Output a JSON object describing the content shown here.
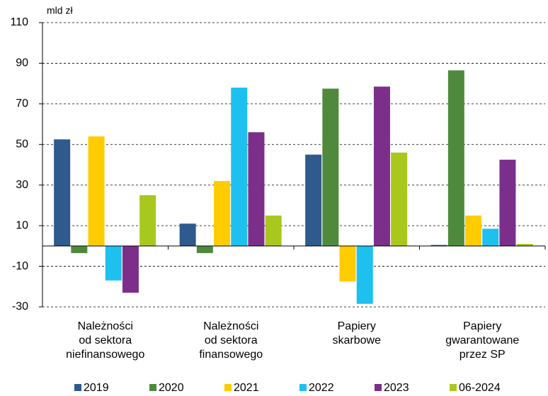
{
  "chart_data": {
    "type": "bar",
    "y_unit": "mld zł",
    "categories": [
      [
        "Należności",
        "od sektora",
        "niefinansowego"
      ],
      [
        "Należności",
        "od sektora",
        "finansowego"
      ],
      [
        "Papiery",
        "skarbowe"
      ],
      [
        "Papiery",
        "gwarantowane",
        "przez SP"
      ]
    ],
    "series": [
      {
        "name": "2019",
        "color": "#2e5a8e",
        "values": [
          52.5,
          11,
          45,
          0.5
        ]
      },
      {
        "name": "2020",
        "color": "#4f8a3c",
        "values": [
          -3.5,
          -3.5,
          77.5,
          86.5
        ]
      },
      {
        "name": "2021",
        "color": "#ffcc00",
        "values": [
          54,
          32,
          -17.5,
          15
        ]
      },
      {
        "name": "2022",
        "color": "#1ec0f0",
        "values": [
          -17,
          78,
          -28.5,
          8.5
        ]
      },
      {
        "name": "2023",
        "color": "#7b2f8a",
        "values": [
          -23,
          56,
          78.5,
          42.5
        ]
      },
      {
        "name": "06-2024",
        "color": "#a8c81e",
        "values": [
          25,
          15,
          46,
          1
        ]
      }
    ],
    "ylim": [
      -30,
      110
    ],
    "yticks": [
      -30,
      -10,
      10,
      30,
      50,
      70,
      90,
      110
    ],
    "grid": true
  }
}
